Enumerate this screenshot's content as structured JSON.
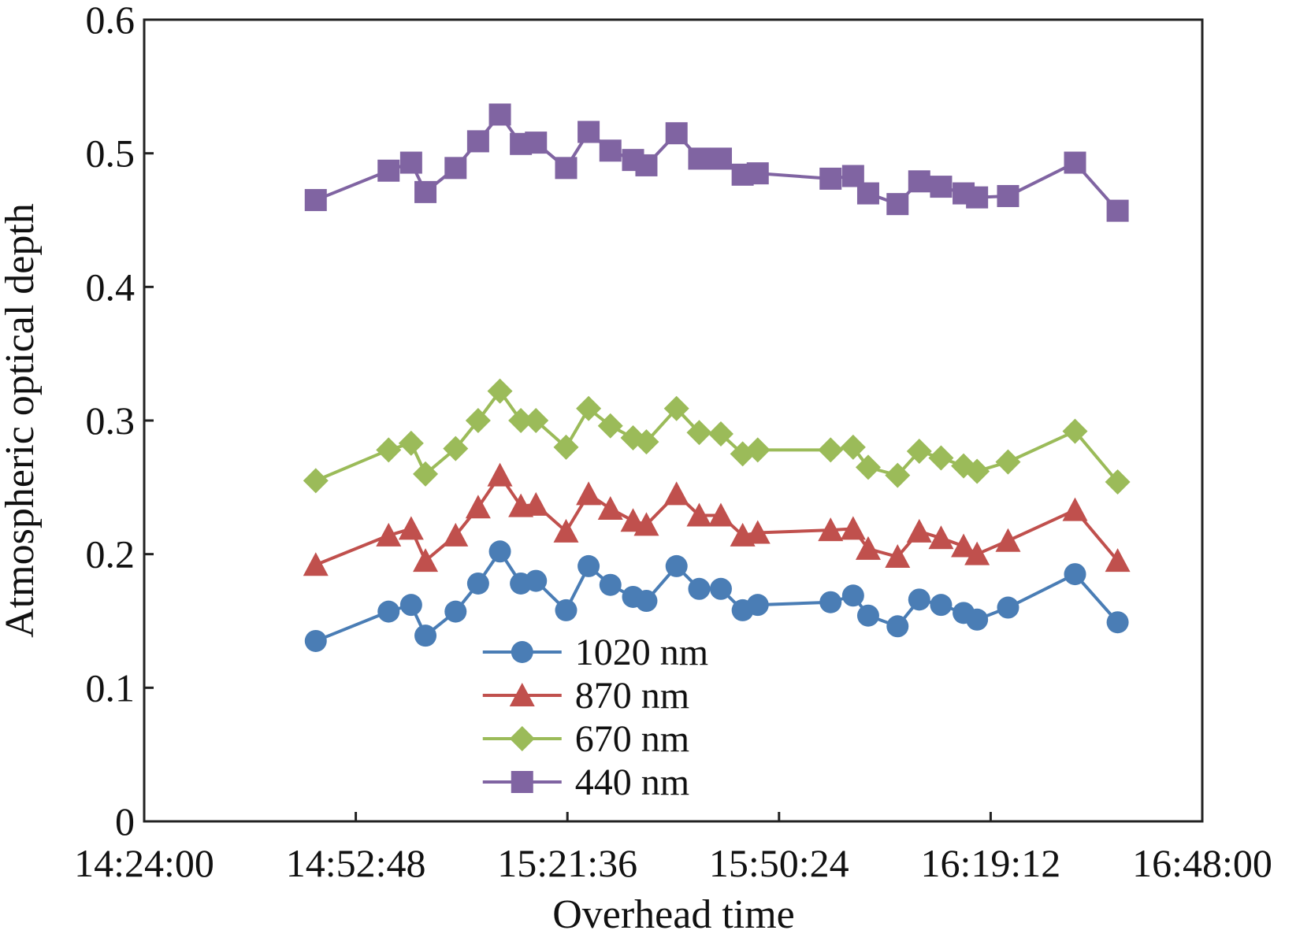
{
  "chart_data": {
    "type": "line",
    "xlabel": "Overhead time",
    "ylabel": "Atmospheric optical depth",
    "x": [
      53241,
      53836,
      54020,
      54137,
      54383,
      54567,
      54745,
      54916,
      55039,
      55285,
      55469,
      55647,
      55832,
      55941,
      56187,
      56372,
      56549,
      56727,
      56850,
      57445,
      57629,
      57752,
      57992,
      58169,
      58347,
      58531,
      58641,
      58894,
      59441,
      59789
    ],
    "series": [
      {
        "name": "1020 nm",
        "color": "#4a7db5",
        "marker": "circle",
        "values": [
          0.135,
          0.157,
          0.162,
          0.139,
          0.157,
          0.178,
          0.202,
          0.178,
          0.18,
          0.158,
          0.191,
          0.177,
          0.168,
          0.165,
          0.191,
          0.174,
          0.174,
          0.158,
          0.162,
          0.164,
          0.169,
          0.154,
          0.146,
          0.166,
          0.162,
          0.156,
          0.151,
          0.16,
          0.185,
          0.149
        ]
      },
      {
        "name": "870 nm",
        "color": "#c0504d",
        "marker": "triangle",
        "values": [
          0.192,
          0.214,
          0.219,
          0.195,
          0.214,
          0.235,
          0.259,
          0.236,
          0.237,
          0.217,
          0.245,
          0.234,
          0.225,
          0.222,
          0.245,
          0.229,
          0.229,
          0.214,
          0.216,
          0.218,
          0.219,
          0.204,
          0.198,
          0.217,
          0.212,
          0.206,
          0.2,
          0.21,
          0.233,
          0.195
        ]
      },
      {
        "name": "670 nm",
        "color": "#9bbb59",
        "marker": "diamond",
        "values": [
          0.255,
          0.278,
          0.283,
          0.26,
          0.279,
          0.3,
          0.322,
          0.3,
          0.3,
          0.28,
          0.309,
          0.296,
          0.287,
          0.284,
          0.309,
          0.291,
          0.29,
          0.275,
          0.278,
          0.278,
          0.28,
          0.265,
          0.259,
          0.277,
          0.272,
          0.266,
          0.262,
          0.269,
          0.292,
          0.254
        ]
      },
      {
        "name": "440 nm",
        "color": "#8064a2",
        "marker": "square",
        "values": [
          0.465,
          0.487,
          0.493,
          0.471,
          0.489,
          0.509,
          0.529,
          0.507,
          0.508,
          0.489,
          0.516,
          0.502,
          0.495,
          0.491,
          0.515,
          0.496,
          0.496,
          0.484,
          0.485,
          0.481,
          0.483,
          0.47,
          0.462,
          0.479,
          0.475,
          0.47,
          0.467,
          0.468,
          0.493,
          0.457
        ]
      }
    ],
    "xlim": [
      51840,
      60480
    ],
    "xticks": [
      {
        "value": 51840,
        "label": "14:24:00"
      },
      {
        "value": 53568,
        "label": "14:52:48"
      },
      {
        "value": 55296,
        "label": "15:21:36"
      },
      {
        "value": 57024,
        "label": "15:50:24"
      },
      {
        "value": 58752,
        "label": "16:19:12"
      },
      {
        "value": 60480,
        "label": "16:48:00"
      }
    ],
    "ylim": [
      0,
      0.6
    ],
    "yticks": [
      0,
      0.1,
      0.2,
      0.3,
      0.4,
      0.5,
      0.6
    ],
    "legend": "lower center",
    "grid": false
  }
}
